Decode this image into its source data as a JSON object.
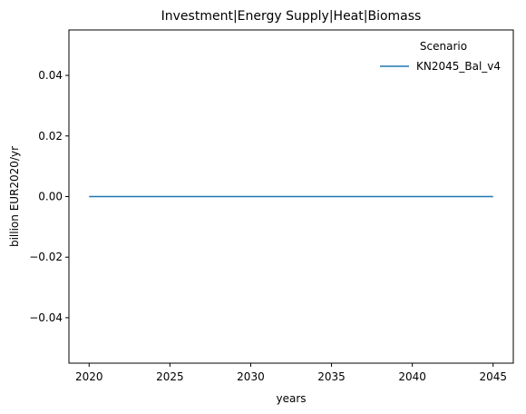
{
  "chart_data": {
    "type": "line",
    "title": "Investment|Energy Supply|Heat|Biomass",
    "xlabel": "years",
    "ylabel": "billion EUR2020/yr",
    "xlim": [
      2018.75,
      2046.25
    ],
    "ylim": [
      -0.055,
      0.055
    ],
    "xticks": [
      2020,
      2025,
      2030,
      2035,
      2040,
      2045
    ],
    "xtick_labels": [
      "2020",
      "2025",
      "2030",
      "2035",
      "2040",
      "2045"
    ],
    "yticks": [
      -0.04,
      -0.02,
      0.0,
      0.02,
      0.04
    ],
    "ytick_labels": [
      "−0.04",
      "−0.02",
      "0.00",
      "0.02",
      "0.04"
    ],
    "grid": false,
    "legend": {
      "title": "Scenario",
      "placement": "top-right"
    },
    "series": [
      {
        "name": "KN2045_Bal_v4",
        "color": "#1f77b4",
        "x": [
          2020,
          2025,
          2030,
          2035,
          2040,
          2045
        ],
        "y": [
          0,
          0,
          0,
          0,
          0,
          0
        ]
      }
    ]
  }
}
